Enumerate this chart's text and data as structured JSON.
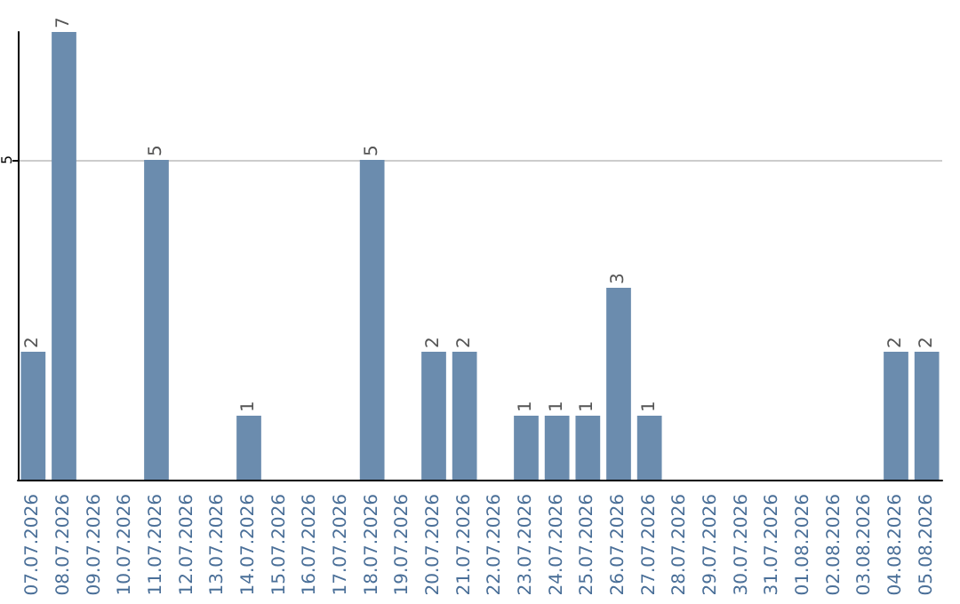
{
  "chart_data": {
    "type": "bar",
    "categories": [
      "07.07.2026",
      "08.07.2026",
      "09.07.2026",
      "10.07.2026",
      "11.07.2026",
      "12.07.2026",
      "13.07.2026",
      "14.07.2026",
      "15.07.2026",
      "16.07.2026",
      "17.07.2026",
      "18.07.2026",
      "19.07.2026",
      "20.07.2026",
      "21.07.2026",
      "22.07.2026",
      "23.07.2026",
      "24.07.2026",
      "25.07.2026",
      "26.07.2026",
      "27.07.2026",
      "28.07.2026",
      "29.07.2026",
      "30.07.2026",
      "31.07.2026",
      "01.08.2026",
      "02.08.2026",
      "03.08.2026",
      "04.08.2026",
      "05.08.2026"
    ],
    "values": [
      2,
      7,
      0,
      0,
      5,
      0,
      0,
      1,
      0,
      0,
      0,
      5,
      0,
      2,
      2,
      0,
      1,
      1,
      1,
      3,
      1,
      0,
      0,
      0,
      0,
      0,
      0,
      0,
      2,
      2
    ],
    "value_labels": [
      "2",
      "7",
      null,
      null,
      "5",
      null,
      null,
      "1",
      null,
      null,
      null,
      "5",
      null,
      "2",
      "2",
      null,
      "1",
      "1",
      "1",
      "3",
      "1",
      null,
      null,
      null,
      null,
      null,
      null,
      null,
      "2",
      "2"
    ],
    "color": "#6b8cae",
    "ylim": [
      0,
      7
    ],
    "yticks": [
      5
    ],
    "grid": "y"
  }
}
